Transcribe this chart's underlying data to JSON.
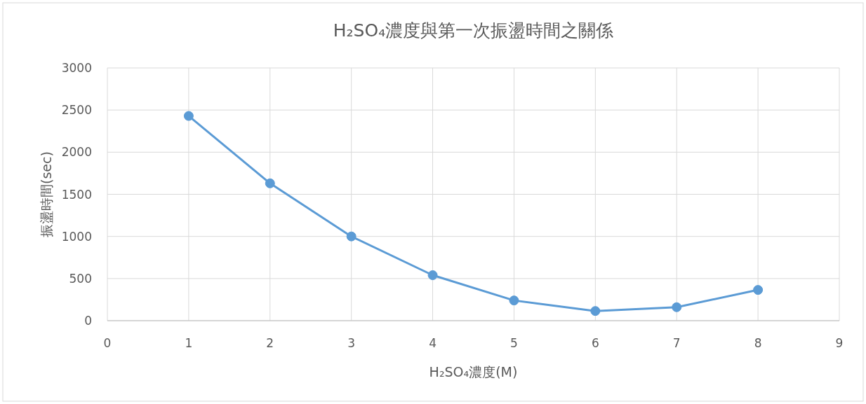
{
  "chart_data": {
    "type": "line",
    "title": "H₂SO₄濃度與第一次振盪時間之關係",
    "xlabel": "H₂SO₄濃度(M)",
    "ylabel": "振盪時間(sec)",
    "x": [
      1,
      2,
      3,
      4,
      5,
      6,
      7,
      8
    ],
    "series": [
      {
        "color": "#5b9bd5",
        "values": [
          2430,
          1630,
          1000,
          540,
          240,
          115,
          160,
          365
        ]
      }
    ],
    "xlim": [
      0,
      9
    ],
    "xticks": [
      0,
      1,
      2,
      3,
      4,
      5,
      6,
      7,
      8,
      9
    ],
    "ylim": [
      0,
      3000
    ],
    "yticks": [
      0,
      500,
      1000,
      1500,
      2000,
      2500,
      3000
    ],
    "grid": true,
    "marker": "circle",
    "line_style": "solid"
  }
}
